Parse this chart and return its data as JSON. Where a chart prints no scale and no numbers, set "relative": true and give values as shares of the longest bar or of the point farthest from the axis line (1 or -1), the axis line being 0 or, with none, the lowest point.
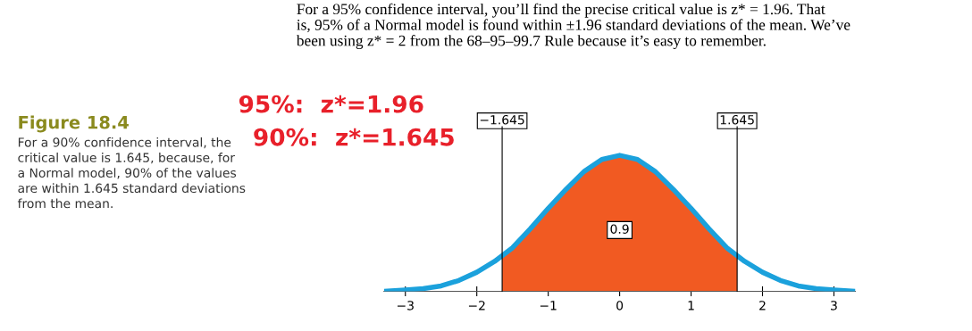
{
  "chart_data": {
    "type": "line",
    "title": "Figure 18.4",
    "subtitle": "For a 90% confidence interval, the\ncritical value is 1.645, because, for\na Normal model, 90% of the values\nare within 1.645 standard deviations\nfrom the mean.",
    "relative": true,
    "series": [
      {
        "type": "area",
        "color": "#f15a22",
        "x": [
          -1.645,
          -1.5,
          -1.25,
          -1,
          -0.75,
          -0.5,
          -0.25,
          0,
          0.25,
          0.5,
          0.75,
          1,
          1.25,
          1.5,
          1.645
        ],
        "values": [
          0.26,
          0.32,
          0.46,
          0.61,
          0.75,
          0.88,
          0.97,
          1,
          0.97,
          0.88,
          0.75,
          0.61,
          0.46,
          0.32,
          0.26
        ]
      },
      {
        "type": "line",
        "color": "#1ba1dc",
        "x": [
          -3.3,
          -3,
          -2.75,
          -2.5,
          -2.25,
          -2,
          -1.75,
          -1.5,
          -1.25,
          -1,
          -0.75,
          -0.5,
          -0.25,
          0,
          0.25,
          0.5,
          0.75,
          1,
          1.25,
          1.5,
          1.75,
          2,
          2.25,
          2.5,
          2.75,
          3,
          3.3
        ],
        "values": [
          0.0,
          0.01,
          0.02,
          0.04,
          0.08,
          0.14,
          0.22,
          0.32,
          0.46,
          0.61,
          0.75,
          0.88,
          0.97,
          1,
          0.97,
          0.88,
          0.75,
          0.61,
          0.46,
          0.32,
          0.22,
          0.14,
          0.08,
          0.04,
          0.02,
          0.01,
          0.0
        ]
      }
    ],
    "xlim": [
      -3.3,
      3.3
    ],
    "xticks": [
      {
        "value": -3,
        "label": "−3"
      },
      {
        "value": -2,
        "label": "−2"
      },
      {
        "value": -1,
        "label": "−1"
      },
      0,
      1,
      2,
      3
    ],
    "ref_lines": [
      {
        "axis": "x",
        "value": -1.645,
        "label": "−1.645",
        "color": "#000000"
      },
      {
        "axis": "x",
        "value": 1.645,
        "label": "1.645",
        "color": "#000000"
      }
    ],
    "annotations": [
      {
        "text": "0.9",
        "x": 0,
        "y": 0.45
      },
      "For a 95% confidence interval, you’ll find the precise critical value is z* = 1.96. That\nis, 95% of a Normal model is found within ±1.96 standard deviations of the mean. We’ve\nbeen using z* = 2 from the 68–95–99.7 Rule because it’s easy to remember.",
      "95%:  z*=1.96",
      "90%:  z*=1.645"
    ],
    "grid": false,
    "tick_labels": "x"
  }
}
